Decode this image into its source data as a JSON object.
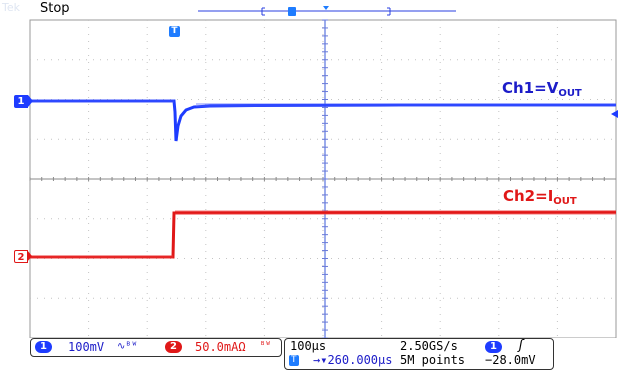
{
  "status": {
    "state": "Stop",
    "ghost_label": "Tek"
  },
  "waveform_labels": {
    "ch1": {
      "main": "Ch1=V",
      "sub": "OUT",
      "color": "#1c1cc8"
    },
    "ch2": {
      "main": "Ch2=I",
      "sub": "OUT",
      "color": "#e01818"
    }
  },
  "markers": {
    "ch1": "1",
    "ch2": "2",
    "trigger": "T"
  },
  "channel_panel": {
    "ch1": {
      "chip": "1",
      "scale": "100mV",
      "coupling": "∿ᴮᵂ"
    },
    "ch2": {
      "chip": "2",
      "scale": "50.0mAΩ",
      "coupling": "ᴮᵂ"
    }
  },
  "timebase_panel": {
    "timebase": "100µs",
    "sample_rate": "2.50GS/s",
    "trigger_chip": "1",
    "trigger_slope": "ʃ",
    "trigger_icon": "T",
    "delay": "→▾260.000µs",
    "record_length": "5M points",
    "trigger_level": "−28.0mV"
  },
  "colors": {
    "ch1": "#1e3cff",
    "ch2": "#e01818",
    "grid": "#b8b8b8",
    "center": "#888888"
  }
}
